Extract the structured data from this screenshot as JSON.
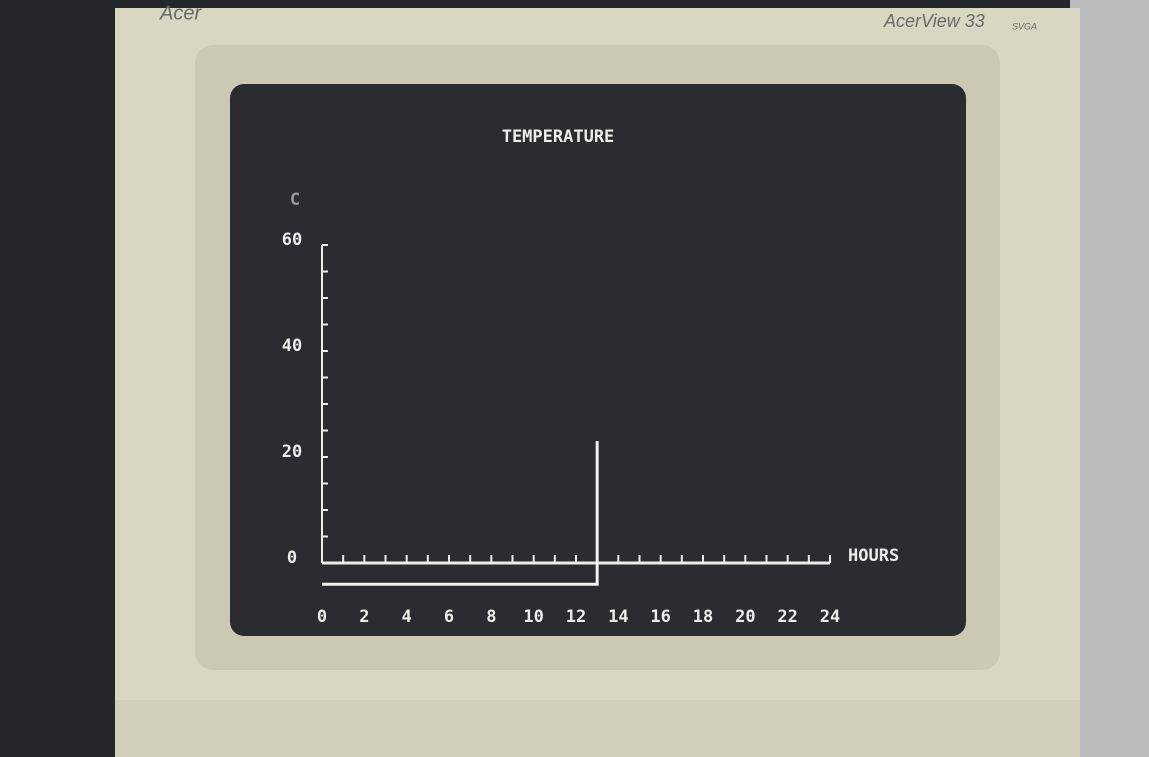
{
  "monitor": {
    "brand": "Acer",
    "model": "AcerView 33",
    "badge": "SVGA"
  },
  "chart_data": {
    "type": "line",
    "title": "TEMPERATURE",
    "y_label": "C",
    "x_label": "HOURS",
    "x": [
      0,
      13,
      13
    ],
    "values": [
      -4,
      -4,
      23
    ],
    "color": "#f2f2f2",
    "xlim": [
      0,
      24
    ],
    "xticks": [
      0,
      2,
      4,
      6,
      8,
      10,
      12,
      14,
      16,
      18,
      20,
      22,
      24
    ],
    "xminorticks": [
      1,
      3,
      5,
      7,
      9,
      11,
      13,
      15,
      17,
      19,
      21,
      23
    ],
    "ylim": [
      0,
      60
    ],
    "yticks": [
      0,
      20,
      40,
      60
    ],
    "yminorticks": [
      5,
      10,
      15,
      25,
      30,
      35,
      45,
      50,
      55
    ]
  }
}
